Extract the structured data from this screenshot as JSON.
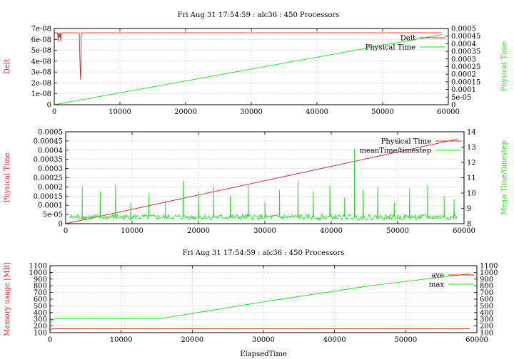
{
  "colors": {
    "red": "#cc2222",
    "green": "#22dd22",
    "grid": "#b0b0b0",
    "axis": "#000000"
  },
  "chart_data": [
    {
      "type": "line",
      "title": "Fri Aug 31 17:54:59 : alc36 : 450 Processors",
      "xlabel": "",
      "ylabel": "Delt",
      "y2label": "Physical Time",
      "xlim": [
        0,
        60000
      ],
      "ylim": [
        0,
        7e-08
      ],
      "y2lim": [
        0,
        0.0005
      ],
      "grid": true,
      "legend_position": "top-right",
      "x_tick_labels": [
        "0",
        "10000",
        "20000",
        "30000",
        "40000",
        "50000",
        "60000"
      ],
      "y_tick_labels": [
        "0",
        "1e-08",
        "2e-08",
        "3e-08",
        "4e-08",
        "5e-08",
        "6e-08",
        "7e-08"
      ],
      "y2_tick_labels": [
        "0",
        "5e-05",
        "0.0001",
        "0.00015",
        "0.0002",
        "0.00025",
        "0.0003",
        "0.00035",
        "0.0004",
        "0.00045",
        "0.0005"
      ],
      "series": [
        {
          "name": "Delt",
          "axis": "y",
          "x": [
            0,
            500,
            600,
            700,
            800,
            900,
            1000,
            1100,
            1200,
            1300,
            3800,
            3900,
            4000,
            4050,
            4100,
            4200,
            4300,
            10000,
            20000,
            30000,
            40000,
            50000,
            59000
          ],
          "y": [
            6.6e-08,
            6.6e-08,
            5.8e-08,
            6.6e-08,
            6.2e-08,
            6.6e-08,
            5.8e-08,
            6.6e-08,
            6.6e-08,
            6.6e-08,
            6.6e-08,
            4.2e-08,
            2.3e-08,
            3e-08,
            6.2e-08,
            6.6e-08,
            6.6e-08,
            6.6e-08,
            6.6e-08,
            6.6e-08,
            6.6e-08,
            6.6e-08,
            6.6e-08
          ]
        },
        {
          "name": "Physical Time",
          "axis": "y2",
          "x": [
            0,
            59000
          ],
          "y": [
            0,
            0.00046
          ]
        }
      ]
    },
    {
      "type": "line",
      "title": "",
      "xlabel": "",
      "ylabel": "Physical Time",
      "y2label": "Mean Time/timestep",
      "xlim": [
        0,
        60000
      ],
      "ylim": [
        0,
        0.0005
      ],
      "y2lim": [
        8,
        14
      ],
      "grid": true,
      "legend_position": "top-right",
      "x_tick_labels": [
        "0",
        "10000",
        "20000",
        "30000",
        "40000",
        "50000",
        "60000"
      ],
      "y_tick_labels": [
        "0",
        "5e-05",
        "0.0001",
        "0.00015",
        "0.0002",
        "0.00025",
        "0.0003",
        "0.00035",
        "0.0004",
        "0.00045",
        "0.0005"
      ],
      "y2_tick_labels": [
        "8",
        "9",
        "10",
        "11",
        "12",
        "13",
        "14"
      ],
      "series": [
        {
          "name": "Physical Time",
          "axis": "y",
          "x": [
            0,
            59000
          ],
          "y": [
            0,
            0.00046
          ]
        },
        {
          "name": "meanTime/timestep",
          "axis": "y2",
          "baseline": 8.35,
          "x_range": [
            600,
            59000
          ],
          "spikes": [
            {
              "x": 2500,
              "y": 10.4
            },
            {
              "x": 5200,
              "y": 10.1
            },
            {
              "x": 7500,
              "y": 10.6
            },
            {
              "x": 9800,
              "y": 9.4
            },
            {
              "x": 12500,
              "y": 10.0
            },
            {
              "x": 15000,
              "y": 9.5
            },
            {
              "x": 17700,
              "y": 10.8
            },
            {
              "x": 20000,
              "y": 10.1
            },
            {
              "x": 22300,
              "y": 10.4
            },
            {
              "x": 24800,
              "y": 9.8
            },
            {
              "x": 27500,
              "y": 10.6
            },
            {
              "x": 30000,
              "y": 9.4
            },
            {
              "x": 32200,
              "y": 10.2
            },
            {
              "x": 35000,
              "y": 10.8
            },
            {
              "x": 37300,
              "y": 10.1
            },
            {
              "x": 39800,
              "y": 10.5
            },
            {
              "x": 42000,
              "y": 9.7
            },
            {
              "x": 43500,
              "y": 12.9
            },
            {
              "x": 44800,
              "y": 10.2
            },
            {
              "x": 47000,
              "y": 10.4
            },
            {
              "x": 49500,
              "y": 9.4
            },
            {
              "x": 51800,
              "y": 10.3
            },
            {
              "x": 54500,
              "y": 10.5
            },
            {
              "x": 57000,
              "y": 9.8
            },
            {
              "x": 58500,
              "y": 9.6
            }
          ]
        }
      ]
    },
    {
      "type": "line",
      "title": "Fri Aug 31 17:54:59 : alc36 : 450 Processors",
      "xlabel": "ElapsedTime",
      "ylabel": "Memory usage [MB]",
      "y2label": "",
      "xlim": [
        0,
        60000
      ],
      "ylim": [
        100,
        1100
      ],
      "y2lim": [
        100,
        1100
      ],
      "grid": true,
      "legend_position": "top-right",
      "x_tick_labels": [
        "0",
        "10000",
        "20000",
        "30000",
        "40000",
        "50000",
        "60000"
      ],
      "y_tick_labels": [
        "100",
        "200",
        "300",
        "400",
        "500",
        "600",
        "700",
        "800",
        "900",
        "1000",
        "1100"
      ],
      "y2_tick_labels": [
        "100",
        "200",
        "300",
        "400",
        "500",
        "600",
        "700",
        "800",
        "900",
        "1000",
        "1100"
      ],
      "series": [
        {
          "name": "ave",
          "axis": "y",
          "x": [
            0,
            300,
            1000,
            10000,
            20000,
            30000,
            40000,
            50000,
            59000
          ],
          "y": [
            140,
            155,
            160,
            160,
            160,
            160,
            160,
            160,
            160
          ]
        },
        {
          "name": "max",
          "axis": "y",
          "x": [
            0,
            500,
            1000,
            15500,
            30000,
            45000,
            59000
          ],
          "y": [
            250,
            300,
            310,
            310,
            560,
            800,
            980
          ]
        }
      ]
    }
  ]
}
